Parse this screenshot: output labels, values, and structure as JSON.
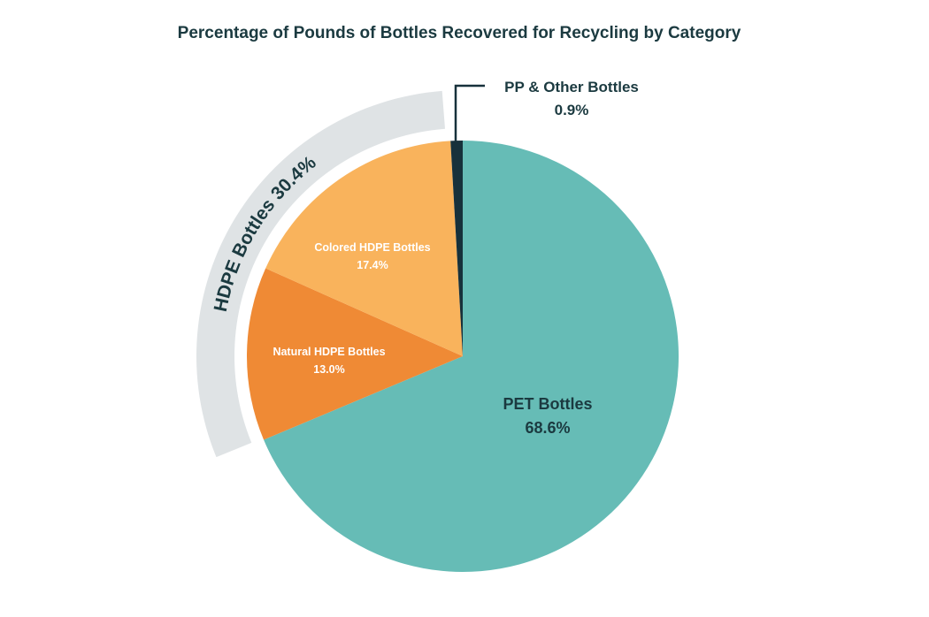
{
  "chart_data": {
    "type": "pie",
    "title": "Percentage of Pounds of Bottles Recovered for Recycling by Category",
    "slices": [
      {
        "label": "PET Bottles",
        "value": 68.6,
        "value_label": "68.6%",
        "color": "#66bcb6"
      },
      {
        "label": "Natural HDPE Bottles",
        "value": 13.0,
        "value_label": "13.0%",
        "color": "#ef8a35"
      },
      {
        "label": "Colored HDPE Bottles",
        "value": 17.4,
        "value_label": "17.4%",
        "color": "#f9b35c"
      },
      {
        "label": "PP & Other Bottles",
        "value": 0.9,
        "value_label": "0.9%",
        "color": "#17313b"
      }
    ],
    "group": {
      "label": "HDPE Bottles 30.4%",
      "value": 30.4,
      "members": [
        "Natural HDPE Bottles",
        "Colored HDPE Bottles"
      ],
      "color": "#dfe3e5"
    },
    "text_color": "#1b3a40"
  }
}
